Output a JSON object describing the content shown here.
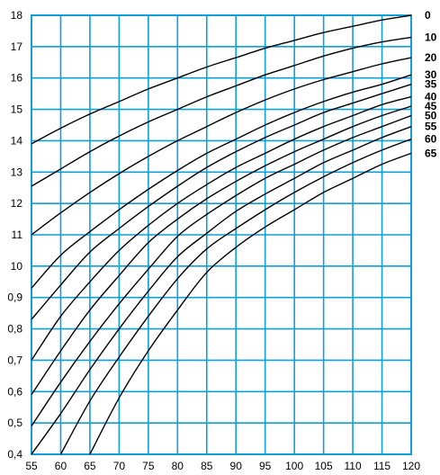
{
  "chart_data": {
    "type": "line",
    "title": "",
    "xlabel": "",
    "ylabel": "",
    "xlim": [
      55,
      120
    ],
    "grid": true,
    "colors": {
      "background": "#ffffff",
      "grid": "#0fa0d8",
      "curve": "#000000"
    },
    "x_ticks": [
      "55",
      "60",
      "65",
      "70",
      "75",
      "80",
      "85",
      "90",
      "95",
      "100",
      "105",
      "110",
      "115",
      "120"
    ],
    "y_ticks": [
      "0,4",
      "0,5",
      "0,6",
      "0,7",
      "0,8",
      "0,9",
      "10",
      "11",
      "12",
      "13",
      "14",
      "15",
      "16",
      "17",
      "18"
    ],
    "series": [
      {
        "name": "0",
        "x": [
          55,
          60,
          65,
          70,
          75,
          80,
          85,
          90,
          95,
          100,
          105,
          110,
          115,
          120
        ],
        "y": [
          "13.9",
          "14.4",
          "14.85",
          "15.25",
          "15.65",
          "16.0",
          "16.35",
          "16.65",
          "16.95",
          "17.2",
          "17.45",
          "17.65",
          "17.85",
          "18.0"
        ]
      },
      {
        "name": "10",
        "x": [
          55,
          60,
          65,
          70,
          75,
          80,
          85,
          90,
          95,
          100,
          105,
          110,
          115,
          120
        ],
        "y": [
          "12.55",
          "13.1",
          "13.65",
          "14.15",
          "14.6",
          "15.0",
          "15.4",
          "15.75",
          "16.1",
          "16.4",
          "16.7",
          "16.95",
          "17.15",
          "17.3"
        ]
      },
      {
        "name": "20",
        "x": [
          55,
          60,
          65,
          70,
          75,
          80,
          85,
          90,
          95,
          100,
          105,
          110,
          115,
          120
        ],
        "y": [
          "11.0",
          "11.7",
          "12.35",
          "12.95",
          "13.5",
          "14.0",
          "14.45",
          "14.9",
          "15.3",
          "15.65",
          "15.95",
          "16.2",
          "16.45",
          "16.65"
        ]
      },
      {
        "name": "30",
        "x": [
          55,
          60,
          65,
          70,
          75,
          80,
          85,
          90,
          95,
          100,
          105,
          110,
          115,
          120
        ],
        "y": [
          "0.93",
          "10.35",
          "11.1",
          "11.8",
          "12.45",
          "13.05",
          "13.6",
          "14.05",
          "14.5",
          "14.9",
          "15.25",
          "15.55",
          "15.8",
          "16.1"
        ]
      },
      {
        "name": "35",
        "x": [
          55,
          60,
          65,
          70,
          75,
          80,
          85,
          90,
          95,
          100,
          105,
          110,
          115,
          120
        ],
        "y": [
          "0.83",
          "0.94",
          "10.45",
          "11.2",
          "11.9",
          "12.55",
          "13.15",
          "13.65",
          "14.1",
          "14.5",
          "14.9",
          "15.2",
          "15.5",
          "15.8"
        ]
      },
      {
        "name": "40",
        "x": [
          55,
          60,
          65,
          70,
          75,
          80,
          85,
          90,
          95,
          100,
          105,
          110,
          115,
          120
        ],
        "y": [
          "0.7",
          "0.84",
          "0.95",
          "10.5",
          "11.3",
          "12.0",
          "12.6",
          "13.15",
          "13.6",
          "14.05",
          "14.45",
          "14.8",
          "15.15",
          "15.4"
        ]
      },
      {
        "name": "45",
        "x": [
          55,
          60,
          65,
          70,
          75,
          80,
          85,
          90,
          95,
          100,
          105,
          110,
          115,
          120
        ],
        "y": [
          "0.59",
          "0.73",
          "0.86",
          "0.97",
          "10.75",
          "11.5",
          "12.15",
          "12.7",
          "13.2",
          "13.65",
          "14.05",
          "14.45",
          "14.8",
          "15.1"
        ]
      },
      {
        "name": "50",
        "x": [
          55,
          60,
          65,
          70,
          75,
          80,
          85,
          90,
          95,
          100,
          105,
          110,
          115,
          120
        ],
        "y": [
          "0.49",
          "0.63",
          "0.76",
          "0.88",
          "0.99",
          "10.95",
          "11.65",
          "12.25",
          "12.8",
          "13.25",
          "13.7",
          "14.1",
          "14.45",
          "14.8"
        ]
      },
      {
        "name": "55",
        "x": [
          55,
          60,
          65,
          70,
          75,
          80,
          85,
          90,
          95,
          100,
          105,
          110,
          115,
          120
        ],
        "y": [
          "0.4",
          "0.53",
          "0.67",
          "0.8",
          "0.92",
          "10.3",
          "11.05",
          "11.75",
          "12.3",
          "12.8",
          "13.3",
          "13.7",
          "14.1",
          "14.45"
        ]
      },
      {
        "name": "60",
        "x": [
          60,
          65,
          70,
          75,
          80,
          85,
          90,
          95,
          100,
          105,
          110,
          115,
          120
        ],
        "y": [
          "0.4",
          "0.57",
          "0.71",
          "0.84",
          "0.96",
          "10.55",
          "11.2",
          "11.8",
          "12.35",
          "12.85",
          "13.3",
          "13.7",
          "14.05"
        ]
      },
      {
        "name": "65",
        "x": [
          65,
          70,
          75,
          80,
          85,
          90,
          95,
          100,
          105,
          110,
          115,
          120
        ],
        "y": [
          "0.4",
          "0.58",
          "0.73",
          "0.86",
          "0.98",
          "10.6",
          "11.25",
          "11.8",
          "12.35",
          "12.8",
          "13.25",
          "13.6"
        ]
      }
    ]
  }
}
